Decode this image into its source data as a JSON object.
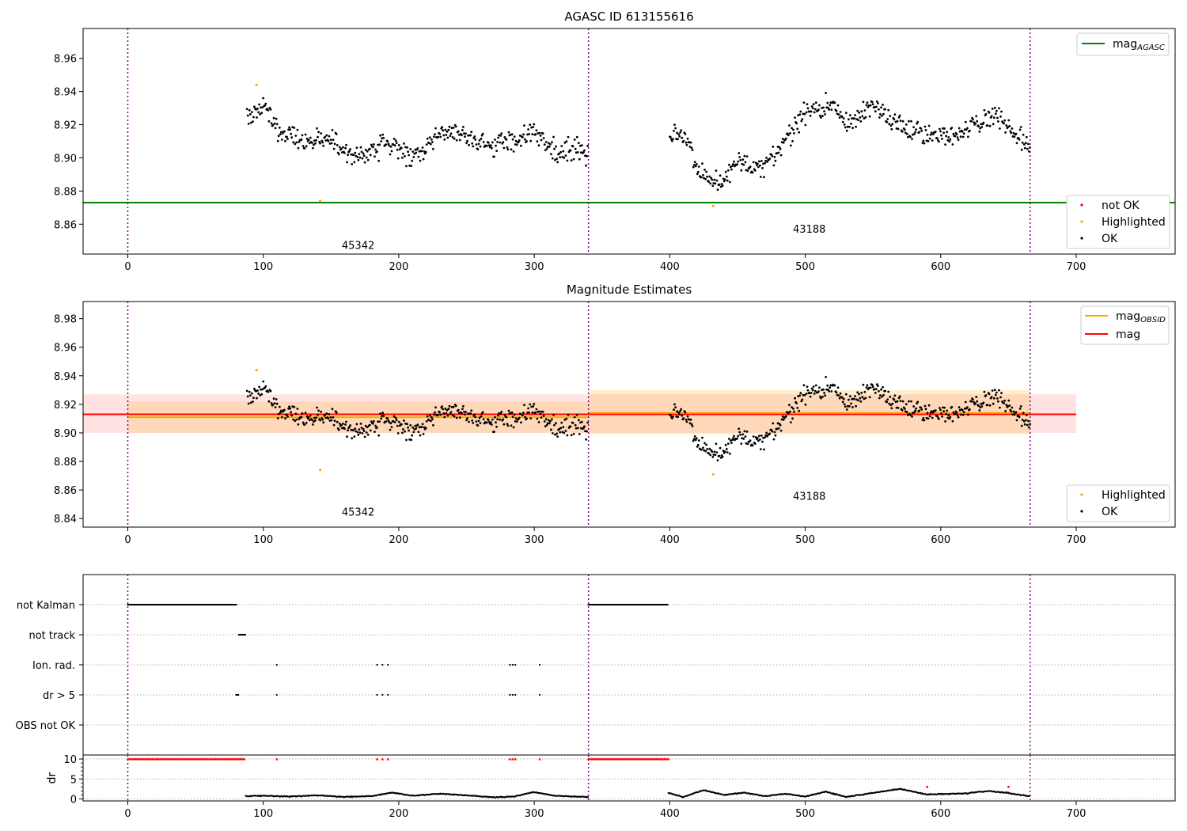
{
  "colors": {
    "ok": "#000000",
    "not_ok": "#ff0000",
    "highlighted": "#ffa500",
    "mag_agasc": "#008000",
    "mag_obsid": "#ffa500",
    "mag": "#ff0000",
    "obsid_boundary": "#800080"
  },
  "obsid_labels": [
    "45342",
    "43188"
  ],
  "obsid_boundaries": [
    0,
    340,
    666
  ],
  "chart_data": [
    {
      "type": "scatter",
      "title": "AGASC ID 613155616",
      "xlim": [
        -33,
        773
      ],
      "ylim": [
        8.842,
        8.978
      ],
      "xticks": [
        0,
        100,
        200,
        300,
        400,
        500,
        600,
        700
      ],
      "xtick_labels": [
        "0",
        "100",
        "200",
        "300",
        "400",
        "500",
        "600",
        "700"
      ],
      "yticks": [
        8.86,
        8.88,
        8.9,
        8.92,
        8.94,
        8.96
      ],
      "ytick_labels": [
        "8.86",
        "8.88",
        "8.90",
        "8.92",
        "8.94",
        "8.96"
      ],
      "lines": [
        {
          "name": "mag",
          "sub": "AGASC",
          "y": 8.873
        }
      ],
      "legend_upper": {
        "position": "upper-right",
        "entries": [
          {
            "label": "mag",
            "sub": "AGASC"
          }
        ]
      },
      "legend_lower": {
        "position": "lower-right",
        "entries": [
          "not OK",
          "Highlighted",
          "OK"
        ]
      },
      "annotations": [
        {
          "text": "45342",
          "x": 170,
          "y": 8.845
        },
        {
          "text": "43188",
          "x": 503,
          "y": 8.855
        }
      ],
      "highlighted_points": [
        [
          95,
          8.944
        ],
        [
          142,
          8.874
        ],
        [
          432,
          8.871
        ]
      ],
      "series": [
        {
          "name": "OK",
          "segments": [
            {
              "x": [
                88,
                95,
                100,
                110,
                120,
                130,
                140,
                150,
                160,
                170,
                180,
                190,
                200,
                210,
                220,
                230,
                240,
                250,
                260,
                270,
                280,
                290,
                300,
                310,
                320,
                330,
                340
              ],
              "y": [
                8.925,
                8.928,
                8.932,
                8.918,
                8.915,
                8.908,
                8.912,
                8.91,
                8.905,
                8.9,
                8.902,
                8.91,
                8.905,
                8.9,
                8.906,
                8.914,
                8.916,
                8.912,
                8.909,
                8.906,
                8.91,
                8.912,
                8.915,
                8.905,
                8.902,
                8.908,
                8.902
              ]
            },
            {
              "x": [
                400,
                410,
                420,
                430,
                440,
                450,
                460,
                470,
                480,
                490,
                500,
                510,
                520,
                530,
                540,
                550,
                560,
                570,
                580,
                590,
                600,
                610,
                620,
                630,
                640,
                650,
                660,
                666
              ],
              "y": [
                8.912,
                8.915,
                8.895,
                8.885,
                8.887,
                8.898,
                8.893,
                8.895,
                8.905,
                8.915,
                8.928,
                8.93,
                8.932,
                8.92,
                8.925,
                8.933,
                8.925,
                8.92,
                8.915,
                8.915,
                8.914,
                8.912,
                8.918,
                8.922,
                8.925,
                8.92,
                8.91,
                8.905
              ]
            }
          ]
        }
      ]
    },
    {
      "type": "scatter",
      "title": "Magnitude Estimates",
      "xlim": [
        -33,
        773
      ],
      "ylim": [
        8.834,
        8.992
      ],
      "xticks": [
        0,
        100,
        200,
        300,
        400,
        500,
        600,
        700
      ],
      "xtick_labels": [
        "0",
        "100",
        "200",
        "300",
        "400",
        "500",
        "600",
        "700"
      ],
      "yticks": [
        8.84,
        8.86,
        8.88,
        8.9,
        8.92,
        8.94,
        8.96,
        8.98
      ],
      "ytick_labels": [
        "8.84",
        "8.86",
        "8.88",
        "8.90",
        "8.92",
        "8.94",
        "8.96",
        "8.98"
      ],
      "mag_band": {
        "x": [
          -33,
          700
        ],
        "y": 8.913,
        "lo": 8.9,
        "hi": 8.927
      },
      "obsid_bands": [
        {
          "x": [
            0,
            340
          ],
          "y": 8.911,
          "lo": 8.9,
          "hi": 8.922
        },
        {
          "x": [
            340,
            666
          ],
          "y": 8.914,
          "lo": 8.899,
          "hi": 8.93
        }
      ],
      "legend_upper": {
        "position": "upper-right",
        "entries": [
          {
            "label": "mag",
            "sub": "OBSID"
          },
          {
            "label": "mag",
            "sub": ""
          }
        ]
      },
      "legend_lower": {
        "position": "lower-right",
        "entries": [
          "Highlighted",
          "OK"
        ]
      },
      "annotations": [
        {
          "text": "45342",
          "x": 170,
          "y": 8.842
        },
        {
          "text": "43188",
          "x": 503,
          "y": 8.853
        }
      ],
      "highlighted_points": [
        [
          95,
          8.944
        ],
        [
          142,
          8.874
        ],
        [
          432,
          8.871
        ]
      ]
    },
    {
      "type": "scatter",
      "title": "",
      "xlim": [
        -33,
        773
      ],
      "xticks": [
        0,
        100,
        200,
        300,
        400,
        500,
        600,
        700
      ],
      "xtick_labels": [
        "0",
        "100",
        "200",
        "300",
        "400",
        "500",
        "600",
        "700"
      ],
      "flags": [
        {
          "label": "not Kalman",
          "ranges": [
            [
              0,
              80
            ],
            [
              340,
              399
            ]
          ]
        },
        {
          "label": "not track",
          "ranges": [
            [
              82,
              87
            ]
          ]
        },
        {
          "label": "Ion. rad.",
          "points": [
            110,
            184,
            188,
            192,
            282,
            284,
            286,
            304
          ]
        },
        {
          "label": "dr > 5",
          "ranges": [
            [
              80,
              82
            ]
          ],
          "points": [
            110,
            184,
            188,
            192,
            282,
            284,
            286,
            304
          ]
        },
        {
          "label": "OBS not OK",
          "points": []
        }
      ]
    },
    {
      "type": "scatter",
      "title": "",
      "ylabel": "dr",
      "xlim": [
        -33,
        773
      ],
      "ylim": [
        -0.5,
        11
      ],
      "yticks": [
        0,
        5,
        10
      ],
      "ytick_labels": [
        "0",
        "5",
        "10"
      ],
      "xticks": [
        0,
        100,
        200,
        300,
        400,
        500,
        600,
        700
      ],
      "xtick_labels": [
        "0",
        "100",
        "200",
        "300",
        "400",
        "500",
        "600",
        "700"
      ],
      "clipped_markers": {
        "value": 10,
        "ranges": [
          [
            0,
            86
          ],
          [
            340,
            399
          ]
        ],
        "points": [
          110,
          184,
          188,
          192,
          282,
          284,
          286,
          304
        ]
      },
      "red_points": [
        [
          590,
          3.0
        ],
        [
          650,
          3.0
        ]
      ],
      "series": [
        {
          "name": "dr",
          "x": [
            87,
            100,
            120,
            140,
            160,
            180,
            195,
            210,
            230,
            250,
            270,
            285,
            300,
            315,
            330,
            340
          ],
          "y": [
            0.7,
            0.8,
            0.6,
            0.9,
            0.5,
            0.7,
            1.6,
            0.8,
            1.3,
            0.9,
            0.4,
            0.6,
            1.7,
            0.8,
            0.6,
            0.5
          ]
        },
        {
          "name": "dr",
          "x": [
            399,
            410,
            425,
            440,
            455,
            470,
            485,
            500,
            515,
            530,
            550,
            570,
            590,
            600,
            620,
            635,
            650,
            666
          ],
          "y": [
            1.5,
            0.5,
            2.2,
            1.0,
            1.6,
            0.7,
            1.3,
            0.6,
            1.8,
            0.5,
            1.5,
            2.5,
            1.1,
            1.2,
            1.4,
            2.0,
            1.5,
            0.6
          ]
        }
      ]
    }
  ]
}
